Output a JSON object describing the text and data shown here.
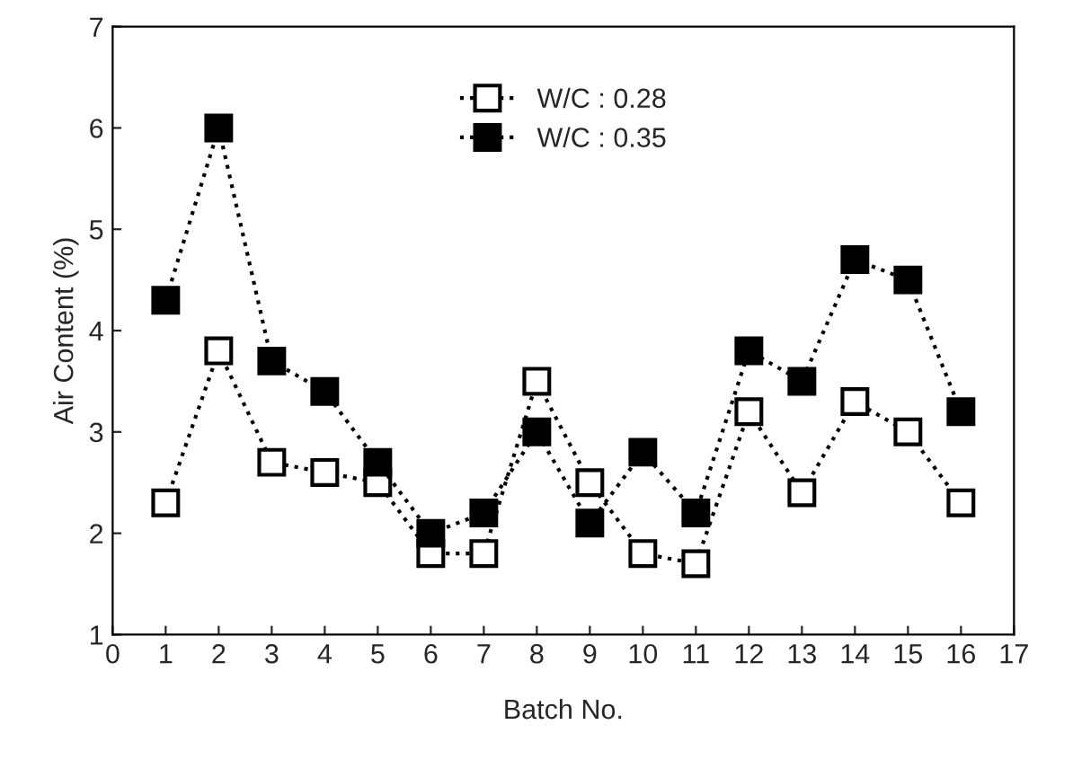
{
  "chart_data": {
    "type": "line",
    "xlabel": "Batch No.",
    "ylabel": "Air Content (%)",
    "x": [
      1,
      2,
      3,
      4,
      5,
      6,
      7,
      8,
      9,
      10,
      11,
      12,
      13,
      14,
      15,
      16
    ],
    "series": [
      {
        "name": "W/C : 0.28",
        "color": "#000000",
        "values": [
          2.3,
          3.8,
          2.7,
          2.6,
          2.5,
          1.8,
          1.8,
          3.5,
          2.5,
          1.8,
          1.7,
          3.2,
          2.4,
          3.3,
          3.0,
          2.3
        ]
      },
      {
        "name": "W/C : 0.35",
        "color": "#000000",
        "values": [
          4.3,
          6.0,
          3.7,
          3.4,
          2.7,
          2.0,
          2.2,
          3.0,
          2.1,
          2.8,
          2.2,
          3.8,
          3.5,
          4.7,
          4.5,
          3.2
        ]
      }
    ],
    "xlim": [
      0,
      17
    ],
    "xticks": [
      0,
      1,
      2,
      3,
      4,
      5,
      6,
      7,
      8,
      9,
      10,
      11,
      12,
      13,
      14,
      15,
      16,
      17
    ],
    "ylim": [
      1,
      7
    ],
    "yticks": [
      1,
      2,
      3,
      4,
      5,
      6,
      7
    ],
    "marker": "square",
    "line_style": "dotted",
    "legend": "top",
    "grid": false
  }
}
